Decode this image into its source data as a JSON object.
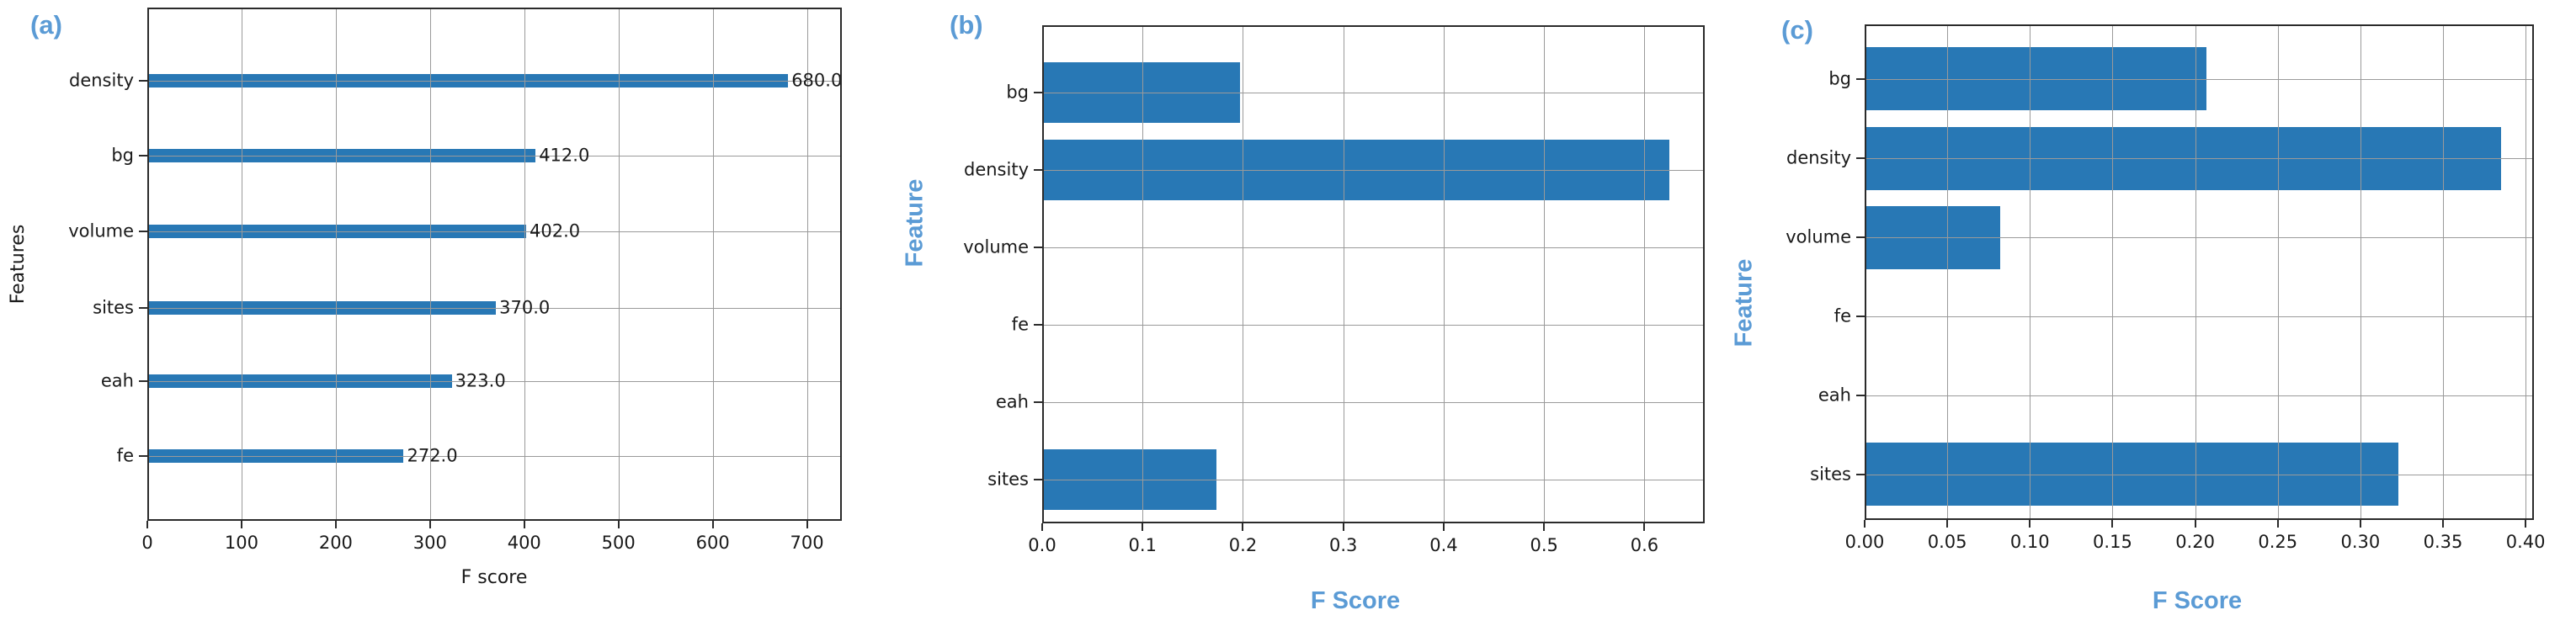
{
  "figure": {
    "background": "#ffffff",
    "bar_color": "#2878b5",
    "accent_color": "#5b9bd5",
    "grid_color": "#9a9a9a"
  },
  "chart_data": [
    {
      "type": "bar",
      "orientation": "horizontal",
      "panel_label": "(a)",
      "xlabel": "F score",
      "ylabel": "Features",
      "categories": [
        "density",
        "bg",
        "volume",
        "sites",
        "eah",
        "fe"
      ],
      "values": [
        680.0,
        412.0,
        402.0,
        370.0,
        323.0,
        272.0
      ],
      "value_labels": [
        "680.0",
        "412.0",
        "402.0",
        "370.0",
        "323.0",
        "272.0"
      ],
      "xlim": [
        0,
        737
      ],
      "xticks": [
        0,
        100,
        200,
        300,
        400,
        500,
        600,
        700
      ],
      "xtick_labels": [
        "0",
        "100",
        "200",
        "300",
        "400",
        "500",
        "600",
        "700"
      ],
      "grid": true,
      "legend": "none",
      "axis_title_style": "black"
    },
    {
      "type": "bar",
      "orientation": "horizontal",
      "panel_label": "(b)",
      "xlabel": "F Score",
      "ylabel": "Feature",
      "categories": [
        "bg",
        "density",
        "volume",
        "fe",
        "eah",
        "sites"
      ],
      "values": [
        0.197,
        0.625,
        0,
        0,
        0,
        0.174
      ],
      "value_labels": [],
      "xlim": [
        0,
        0.66
      ],
      "xticks": [
        0.0,
        0.1,
        0.2,
        0.3,
        0.4,
        0.5,
        0.6
      ],
      "xtick_labels": [
        "0.0",
        "0.1",
        "0.2",
        "0.3",
        "0.4",
        "0.5",
        "0.6"
      ],
      "grid": true,
      "legend": "none",
      "axis_title_style": "blue-bold"
    },
    {
      "type": "bar",
      "orientation": "horizontal",
      "panel_label": "(c)",
      "xlabel": "F Score",
      "ylabel": "Feature",
      "categories": [
        "bg",
        "density",
        "volume",
        "fe",
        "eah",
        "sites"
      ],
      "values": [
        0.207,
        0.385,
        0.082,
        0,
        0,
        0.323
      ],
      "value_labels": [],
      "xlim": [
        0,
        0.405
      ],
      "xticks": [
        0.0,
        0.05,
        0.1,
        0.15,
        0.2,
        0.25,
        0.3,
        0.35,
        0.4
      ],
      "xtick_labels": [
        "0.00",
        "0.05",
        "0.10",
        "0.15",
        "0.20",
        "0.25",
        "0.30",
        "0.35",
        "0.40"
      ],
      "grid": true,
      "legend": "none",
      "axis_title_style": "blue-bold"
    }
  ]
}
